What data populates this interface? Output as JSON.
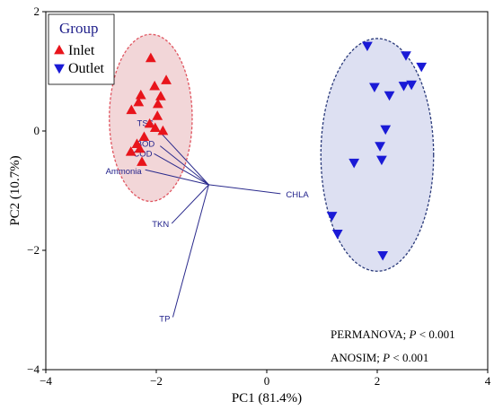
{
  "chart_data": {
    "type": "scatter",
    "xlabel": "PC1 (81.4%)",
    "ylabel": "PC2 (10.7%)",
    "xlim": [
      -4,
      4
    ],
    "ylim": [
      -4,
      2
    ],
    "x_ticks": [
      -4,
      -2,
      0,
      2,
      4
    ],
    "y_ticks": [
      -4,
      -2,
      0,
      2
    ],
    "grid": false,
    "legend": {
      "title": "Group",
      "position": "top-left",
      "entries": [
        {
          "name": "Inlet",
          "marker": "triangle-up",
          "color": "#e8141b"
        },
        {
          "name": "Outlet",
          "marker": "triangle-down",
          "color": "#1a1ad6"
        }
      ]
    },
    "series": [
      {
        "name": "Inlet",
        "marker": "triangle-up",
        "color": "#e8141b",
        "points": [
          {
            "x": -2.1,
            "y": 1.22
          },
          {
            "x": -1.82,
            "y": 0.85
          },
          {
            "x": -2.03,
            "y": 0.75
          },
          {
            "x": -2.28,
            "y": 0.6
          },
          {
            "x": -1.92,
            "y": 0.58
          },
          {
            "x": -2.32,
            "y": 0.48
          },
          {
            "x": -1.97,
            "y": 0.45
          },
          {
            "x": -2.45,
            "y": 0.35
          },
          {
            "x": -1.98,
            "y": 0.25
          },
          {
            "x": -2.12,
            "y": 0.12
          },
          {
            "x": -2.02,
            "y": 0.05
          },
          {
            "x": -1.88,
            "y": 0.0
          },
          {
            "x": -2.22,
            "y": -0.1
          },
          {
            "x": -2.35,
            "y": -0.22
          },
          {
            "x": -2.3,
            "y": -0.3
          },
          {
            "x": -2.46,
            "y": -0.35
          },
          {
            "x": -2.26,
            "y": -0.52
          }
        ]
      },
      {
        "name": "Outlet",
        "marker": "triangle-down",
        "color": "#1a1ad6",
        "points": [
          {
            "x": 1.82,
            "y": 1.43
          },
          {
            "x": 2.52,
            "y": 1.27
          },
          {
            "x": 2.8,
            "y": 1.08
          },
          {
            "x": 2.62,
            "y": 0.78
          },
          {
            "x": 2.48,
            "y": 0.76
          },
          {
            "x": 1.95,
            "y": 0.74
          },
          {
            "x": 2.22,
            "y": 0.6
          },
          {
            "x": 2.15,
            "y": 0.03
          },
          {
            "x": 2.05,
            "y": -0.25
          },
          {
            "x": 2.08,
            "y": -0.48
          },
          {
            "x": 1.58,
            "y": -0.53
          },
          {
            "x": 1.18,
            "y": -1.42
          },
          {
            "x": 1.28,
            "y": -1.72
          },
          {
            "x": 2.1,
            "y": -2.08
          }
        ]
      }
    ],
    "loadings": {
      "origin": {
        "x": -1.05,
        "y": -0.9
      },
      "vectors": [
        {
          "label": "TSS",
          "x": -2.0,
          "y": 0.05
        },
        {
          "label": "BOD",
          "x": -1.93,
          "y": -0.25
        },
        {
          "label": "COD",
          "x": -2.04,
          "y": -0.38
        },
        {
          "label": "Ammonia",
          "x": -2.2,
          "y": -0.65
        },
        {
          "label": "CHLA",
          "x": 0.25,
          "y": -1.05
        },
        {
          "label": "TKN",
          "x": -1.72,
          "y": -1.55
        },
        {
          "label": "TP",
          "x": -1.7,
          "y": -3.12
        }
      ]
    },
    "ellipses": [
      {
        "group": "Inlet",
        "cx": -2.1,
        "cy": 0.22,
        "rx": 0.75,
        "ry": 1.4,
        "fill": "#f2d6d8",
        "stroke": "#e05560"
      },
      {
        "group": "Outlet",
        "cx": 2.0,
        "cy": -0.4,
        "rx": 1.02,
        "ry": 1.95,
        "fill": "#dde0f2",
        "stroke": "#2a3a7a"
      }
    ],
    "annotations": [
      {
        "label": "PERMANOVA;",
        "p_symbol": "P",
        "relation": "< 0.001"
      },
      {
        "label": "ANOSIM;",
        "p_symbol": "P",
        "relation": "< 0.001"
      }
    ]
  }
}
